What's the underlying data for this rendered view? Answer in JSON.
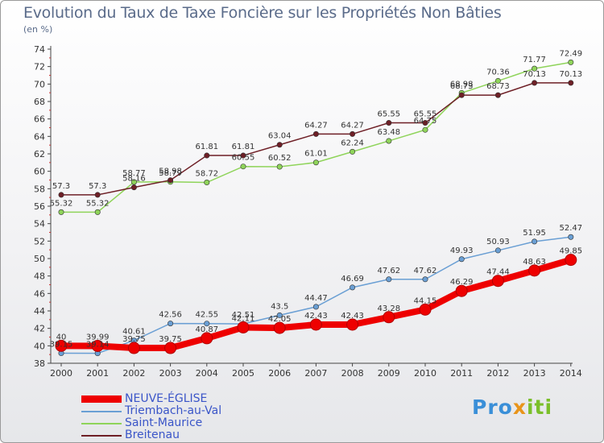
{
  "header": {
    "title": "Evolution du Taux de Taxe Foncière sur les Propriétés Non Bâties",
    "subtitle": "(en %)"
  },
  "logo": {
    "text_a": "Pro",
    "text_b": "x",
    "text_c": "iti"
  },
  "chart_data": {
    "type": "line",
    "title": "Evolution du Taux de Taxe Foncière sur les Propriétés Non Bâties",
    "ylabel": "(en %)",
    "xlabel": "",
    "x": [
      "2000",
      "2001",
      "2002",
      "2003",
      "2004",
      "2005",
      "2006",
      "2007",
      "2008",
      "2009",
      "2010",
      "2011",
      "2012",
      "2013",
      "2014"
    ],
    "ylim": [
      38,
      74
    ],
    "yticks": [
      38,
      40,
      42,
      44,
      46,
      48,
      50,
      52,
      54,
      56,
      58,
      60,
      62,
      64,
      66,
      68,
      70,
      72,
      74
    ],
    "grid": false,
    "legend_position": "bottom-left",
    "series": [
      {
        "name": "NEUVE-ÉGLISE",
        "color": "#ee0000",
        "emphasis": true,
        "values": [
          40,
          39.99,
          39.75,
          39.75,
          40.87,
          42.11,
          42.05,
          42.43,
          42.43,
          43.28,
          44.15,
          46.29,
          47.44,
          48.63,
          49.85
        ],
        "labels": [
          "40",
          "39.99",
          "39.75",
          "39.75",
          "40.87",
          "42.11",
          "42.05",
          "42.43",
          "42.43",
          "43.28",
          "44.15",
          "46.29",
          "47.44",
          "48.63",
          "49.85"
        ]
      },
      {
        "name": "Triembach-au-Val",
        "color": "#6a9fd4",
        "emphasis": false,
        "values": [
          39.15,
          39.14,
          40.61,
          42.56,
          42.55,
          42.51,
          43.5,
          44.47,
          46.69,
          47.62,
          47.62,
          49.93,
          50.93,
          51.95,
          52.47
        ],
        "labels": [
          "39.15",
          "39.14",
          "40.61",
          "42.56",
          "42.55",
          "42.51",
          "43.5",
          "44.47",
          "46.69",
          "47.62",
          "47.62",
          "49.93",
          "50.93",
          "51.95",
          "52.47"
        ]
      },
      {
        "name": "Saint-Maurice",
        "color": "#8fd45a",
        "emphasis": false,
        "values": [
          55.32,
          55.32,
          58.77,
          58.79,
          58.72,
          60.55,
          60.52,
          61.01,
          62.24,
          63.48,
          64.75,
          68.98,
          70.36,
          71.77,
          72.49
        ],
        "labels": [
          "55.32",
          "55.32",
          "58.77",
          "58.79",
          "58.72",
          "60.55",
          "60.52",
          "61.01",
          "62.24",
          "63.48",
          "64.75",
          "68.98",
          "70.36",
          "71.77",
          "72.49"
        ]
      },
      {
        "name": "Breitenau",
        "color": "#6e1f26",
        "emphasis": false,
        "values": [
          57.3,
          57.3,
          58.16,
          58.98,
          61.81,
          61.81,
          63.04,
          64.27,
          64.27,
          65.55,
          65.55,
          68.73,
          68.73,
          70.13,
          70.13
        ],
        "labels": [
          "57.3",
          "57.3",
          "58.16",
          "58.98",
          "61.81",
          "61.81",
          "63.04",
          "64.27",
          "64.27",
          "65.55",
          "65.55",
          "68.73",
          "68.73",
          "70.13",
          "70.13"
        ]
      }
    ]
  }
}
